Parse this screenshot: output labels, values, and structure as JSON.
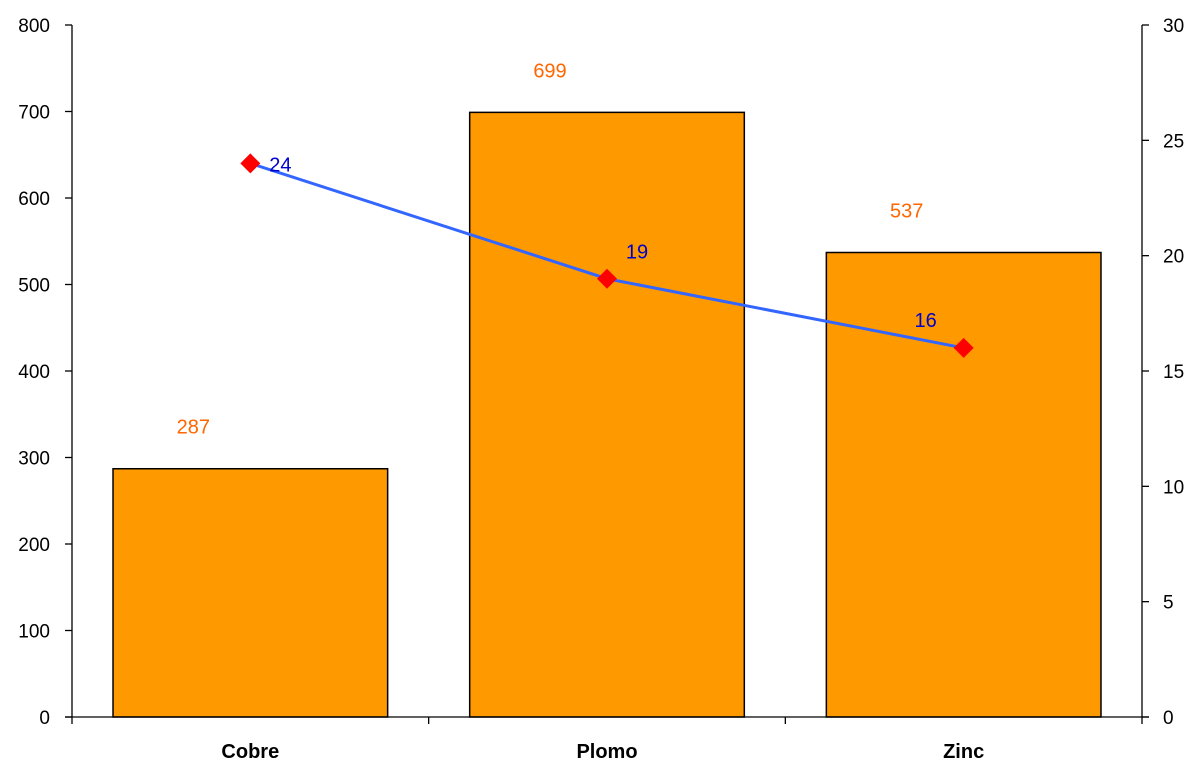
{
  "chart_data": {
    "type": "bar",
    "categories": [
      "Cobre",
      "Plomo",
      "Zinc"
    ],
    "series": [
      {
        "type": "bar",
        "axis": "left",
        "values": [
          287,
          699,
          537
        ],
        "color": "#FF9900",
        "label_color": "#FF6600"
      },
      {
        "type": "line",
        "axis": "right",
        "values": [
          24,
          19,
          16
        ],
        "line_color": "#3366FF",
        "marker_color": "#FF0000",
        "marker": "diamond",
        "label_color": "#0000CC"
      }
    ],
    "y_left": {
      "lim": [
        0,
        800
      ],
      "ticks": [
        0,
        100,
        200,
        300,
        400,
        500,
        600,
        700,
        800
      ]
    },
    "y_right": {
      "lim": [
        0,
        30
      ],
      "ticks": [
        0,
        5,
        10,
        15,
        20,
        25,
        30
      ]
    },
    "title": "",
    "xlabel": "",
    "ylabel": "",
    "grid": false,
    "legend": "none"
  }
}
